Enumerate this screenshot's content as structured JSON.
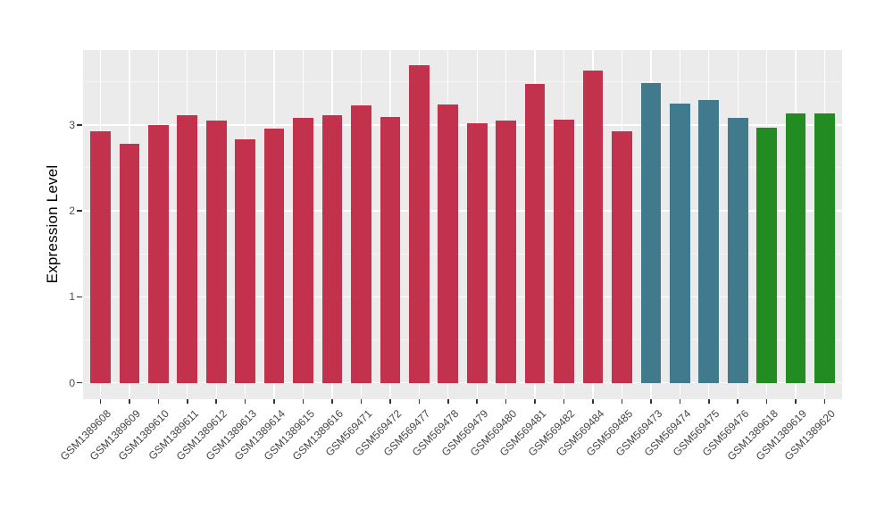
{
  "chart_data": {
    "type": "bar",
    "title": "",
    "xlabel": "",
    "ylabel": "Expression Level",
    "categories": [
      "GSM1389608",
      "GSM1389609",
      "GSM1389610",
      "GSM1389611",
      "GSM1389612",
      "GSM1389613",
      "GSM1389614",
      "GSM1389615",
      "GSM1389616",
      "GSM569471",
      "GSM569472",
      "GSM569477",
      "GSM569478",
      "GSM569479",
      "GSM569480",
      "GSM569481",
      "GSM569482",
      "GSM569484",
      "GSM569485",
      "GSM569473",
      "GSM569474",
      "GSM569475",
      "GSM569476",
      "GSM1389618",
      "GSM1389619",
      "GSM1389620"
    ],
    "values": [
      2.92,
      2.78,
      3.0,
      3.11,
      3.05,
      2.83,
      2.96,
      3.08,
      3.11,
      3.23,
      3.09,
      3.69,
      3.24,
      3.02,
      3.05,
      3.48,
      3.06,
      3.63,
      2.93,
      3.49,
      3.25,
      3.29,
      3.08,
      2.97,
      3.13,
      3.13
    ],
    "bar_groups": [
      0,
      0,
      0,
      0,
      0,
      0,
      0,
      0,
      0,
      0,
      0,
      0,
      0,
      0,
      0,
      0,
      0,
      0,
      0,
      1,
      1,
      1,
      1,
      2,
      2,
      2
    ],
    "group_colors": [
      "#C2324D",
      "#417A8C",
      "#228B22"
    ],
    "yticks": [
      0,
      1,
      2,
      3
    ],
    "minor_yticks": [
      0.5,
      1.5,
      2.5,
      3.5
    ],
    "ylim": [
      -0.19,
      3.87
    ],
    "grid": true,
    "legend": "none",
    "panel_bg": "#EBEBEB",
    "grid_major_color": "#FFFFFF",
    "grid_minor_color": "#F5F5F5",
    "axis_text_color": "#4d4d4d",
    "axis_title_color": "#000000"
  }
}
